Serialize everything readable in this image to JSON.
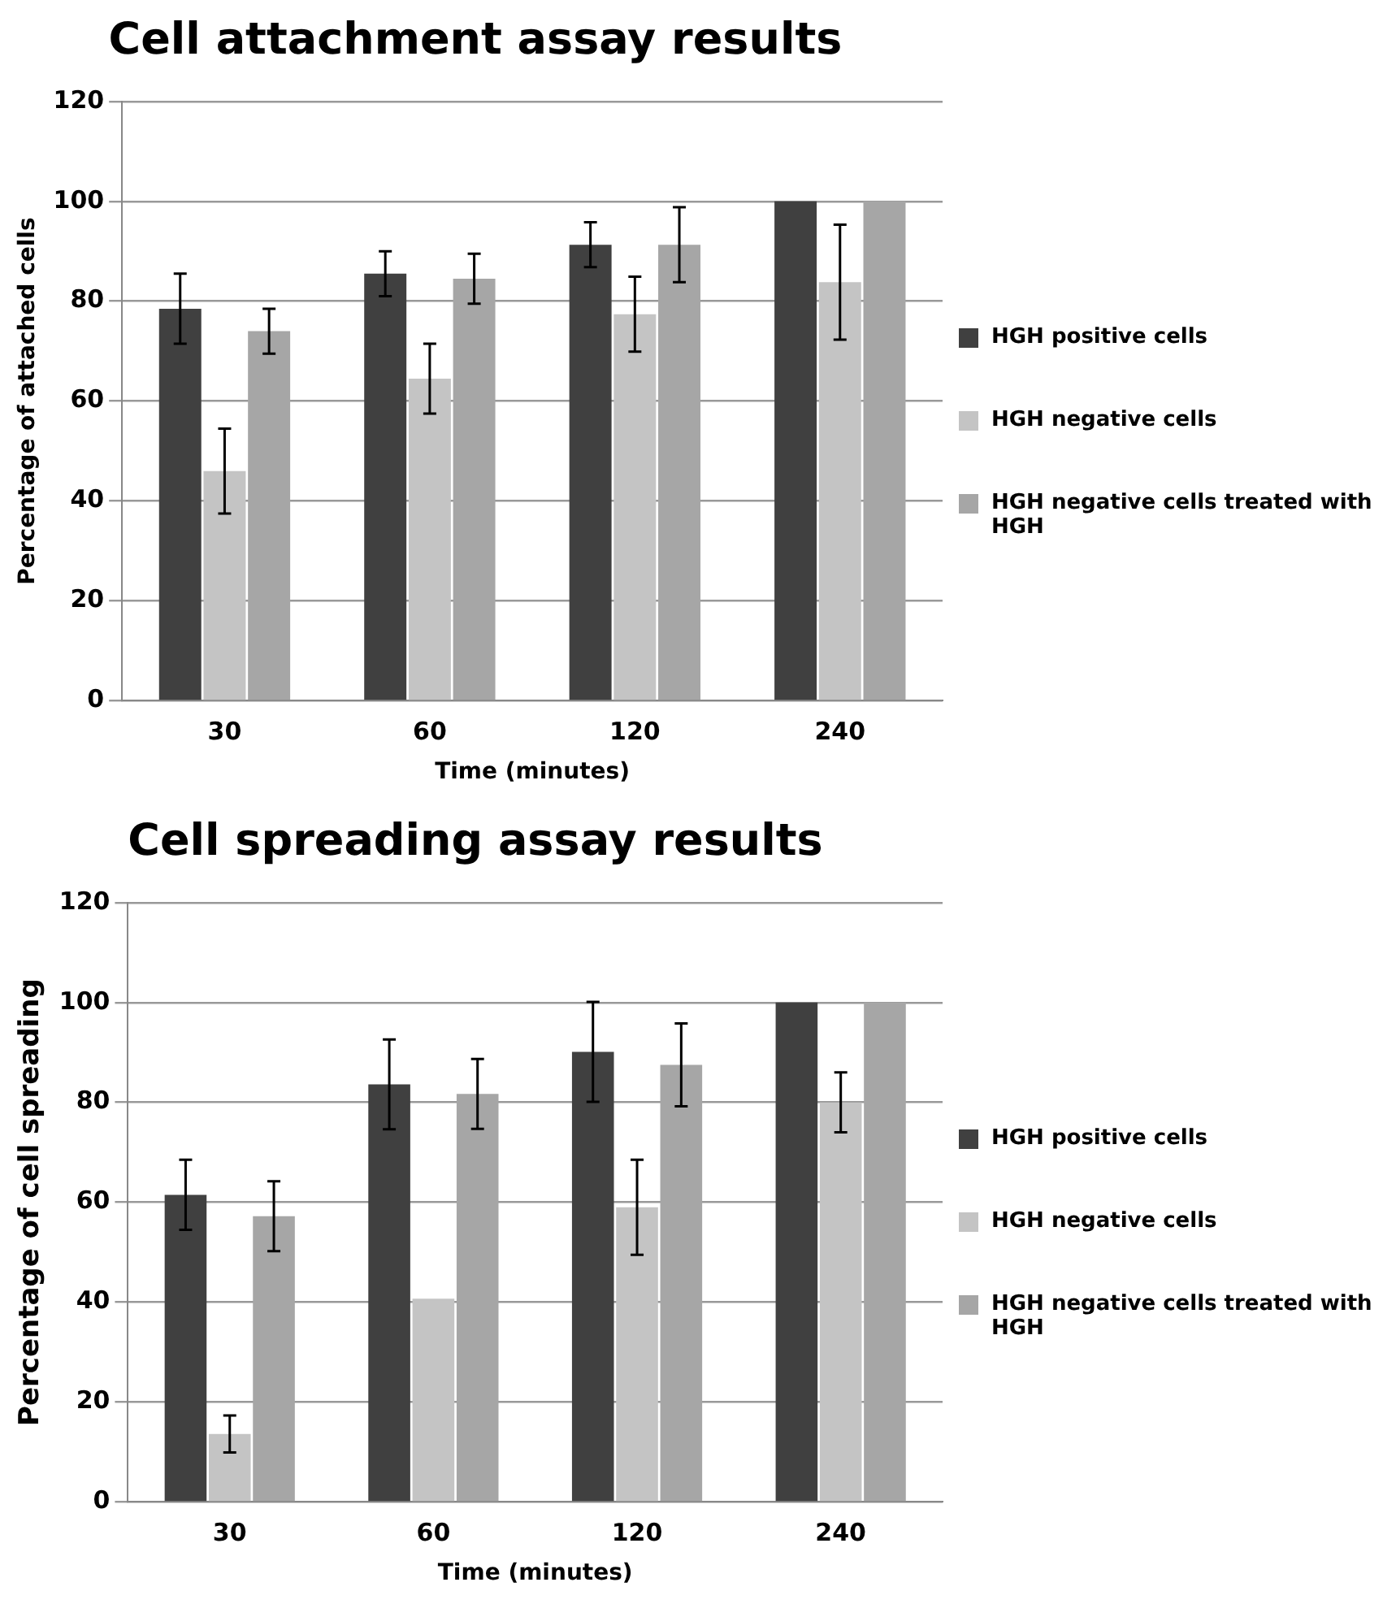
{
  "chart_data": [
    {
      "type": "bar",
      "title": "Cell attachment assay results",
      "xlabel": "Time (minutes)",
      "ylabel": "Percentage of attached cells",
      "categories": [
        "30",
        "60",
        "120",
        "240"
      ],
      "ylim": [
        0,
        120
      ],
      "yticks": [
        0,
        20,
        40,
        60,
        80,
        100,
        120
      ],
      "grid": "y",
      "legend": "right",
      "series": [
        {
          "name": "HGH positive cells",
          "color": "#404040",
          "values": [
            78.5,
            85.5,
            91.3,
            100
          ],
          "errors": [
            7,
            4.5,
            4.5,
            null
          ]
        },
        {
          "name": "HGH negative cells",
          "color": "#c4c4c4",
          "values": [
            46,
            64.5,
            77.4,
            83.8
          ],
          "errors": [
            8.5,
            7,
            7.5,
            11.5
          ]
        },
        {
          "name": "HGH negative cells treated with HGH",
          "color": "#a6a6a6",
          "values": [
            74,
            84.5,
            91.3,
            100
          ],
          "errors": [
            4.5,
            5,
            7.5,
            null
          ]
        }
      ]
    },
    {
      "type": "bar",
      "title": "Cell spreading assay results",
      "xlabel": "Time (minutes)",
      "ylabel": "Percentage of cell spreading",
      "categories": [
        "30",
        "60",
        "120",
        "240"
      ],
      "ylim": [
        0,
        120
      ],
      "yticks": [
        0,
        20,
        40,
        60,
        80,
        100,
        120
      ],
      "grid": "y",
      "legend": "right",
      "series": [
        {
          "name": "HGH positive cells",
          "color": "#404040",
          "values": [
            61.5,
            83.6,
            90.1,
            100
          ],
          "errors": [
            7,
            9,
            10,
            null
          ]
        },
        {
          "name": "HGH negative cells",
          "color": "#c4c4c4",
          "values": [
            13.6,
            40.7,
            59,
            80
          ],
          "errors": [
            3.7,
            null,
            9.5,
            6
          ]
        },
        {
          "name": "HGH negative cells treated with HGH",
          "color": "#a6a6a6",
          "values": [
            57.2,
            81.7,
            87.5,
            100
          ],
          "errors": [
            7,
            7,
            8.3,
            null
          ]
        }
      ]
    }
  ]
}
